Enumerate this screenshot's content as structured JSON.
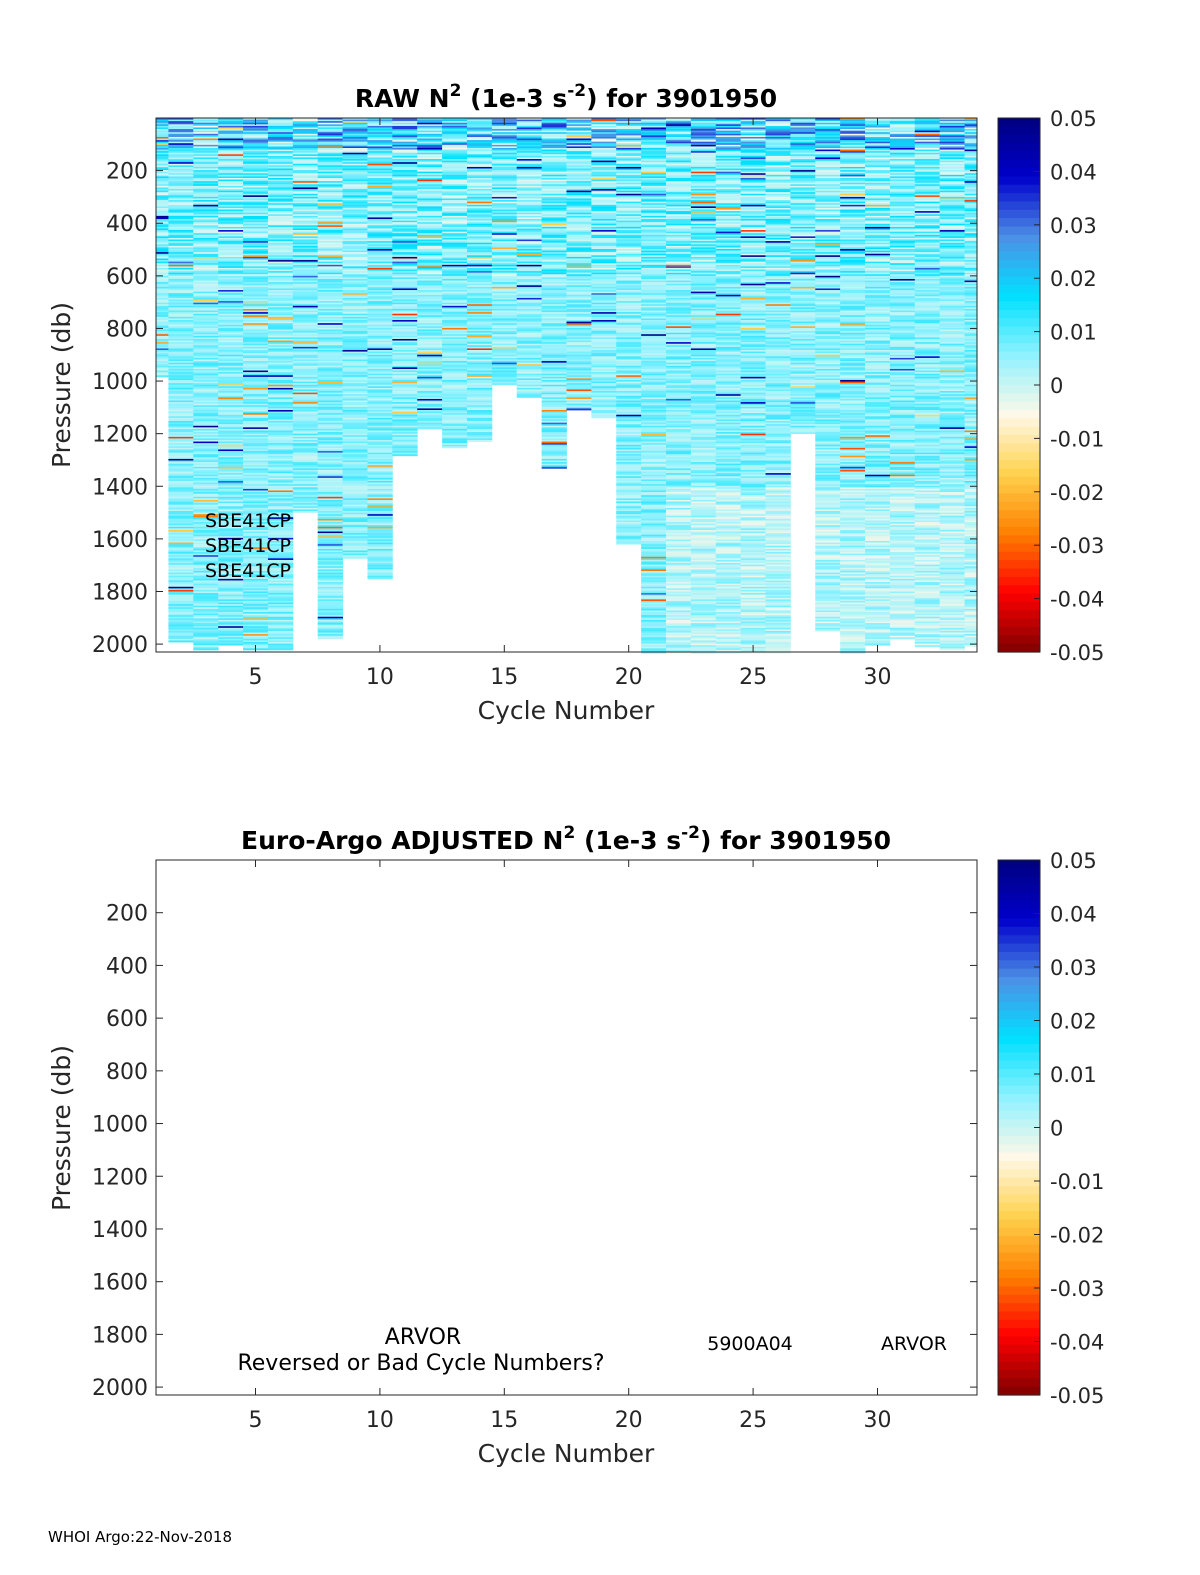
{
  "footer": "WHOI Argo:22-Nov-2018",
  "colors": {
    "colormap": [
      "#800000",
      "#ff0000",
      "#ff8000",
      "#ffd24d",
      "#fff8e8",
      "#8ff2ff",
      "#00e0ff",
      "#4d8fe6",
      "#0000cc",
      "#000080"
    ]
  },
  "chart_data": [
    {
      "type": "heatmap",
      "title": {
        "prefix": "RAW N",
        "sup1": "2",
        "mid": " (1e-3 s",
        "sup2": "-2",
        "suffix": ") for 3901950"
      },
      "xlabel": "Cycle Number",
      "ylabel": "Pressure (db)",
      "xlim": [
        1,
        34
      ],
      "ylim": [
        2030,
        0
      ],
      "xticks": [
        "5",
        "10",
        "15",
        "20",
        "25",
        "30"
      ],
      "yticks": [
        "200",
        "400",
        "600",
        "800",
        "1000",
        "1200",
        "1400",
        "1600",
        "1800",
        "2000"
      ],
      "colorbar": {
        "range": [
          -0.05,
          0.05
        ],
        "ticks": [
          "0.05",
          "0.04",
          "0.03",
          "0.02",
          "0.01",
          "0",
          "-0.01",
          "-0.02",
          "-0.03",
          "-0.04",
          "-0.05"
        ]
      },
      "cycles": [
        1,
        2,
        3,
        4,
        5,
        6,
        7,
        8,
        9,
        10,
        11,
        12,
        13,
        14,
        15,
        16,
        17,
        18,
        19,
        20,
        21,
        22,
        23,
        24,
        25,
        26,
        27,
        28,
        29,
        30,
        31,
        32,
        33,
        34
      ],
      "max_pressure": [
        980,
        1990,
        2020,
        2000,
        2020,
        2020,
        1500,
        1980,
        1670,
        1750,
        1280,
        1180,
        1250,
        1230,
        1010,
        1060,
        1330,
        1110,
        1140,
        1620,
        2030,
        2030,
        2030,
        2030,
        2030,
        2030,
        1200,
        1950,
        2030,
        2000,
        1980,
        2010,
        2020,
        2010
      ],
      "color_scale_note": "",
      "annotations": [
        "SBE41CP",
        "SBE41CP",
        "SBE41CP"
      ]
    },
    {
      "type": "heatmap",
      "title": {
        "prefix": "Euro-Argo  ADJUSTED N",
        "sup1": "2",
        "mid": " (1e-3 s",
        "sup2": "-2",
        "suffix": ") for 3901950"
      },
      "xlabel": "Cycle Number",
      "ylabel": "Pressure (db)",
      "xlim": [
        1,
        34
      ],
      "ylim": [
        2030,
        0
      ],
      "xticks": [
        "5",
        "10",
        "15",
        "20",
        "25",
        "30"
      ],
      "yticks": [
        "200",
        "400",
        "600",
        "800",
        "1000",
        "1200",
        "1400",
        "1600",
        "1800",
        "2000"
      ],
      "colorbar": {
        "range": [
          -0.05,
          0.05
        ],
        "ticks": [
          "0.05",
          "0.04",
          "0.03",
          "0.02",
          "0.01",
          "0",
          "-0.01",
          "-0.02",
          "-0.03",
          "-0.04",
          "-0.05"
        ]
      },
      "annotations": [
        "ARVOR",
        "Reversed or Bad Cycle Numbers?",
        "5900A04",
        "ARVOR"
      ]
    }
  ]
}
